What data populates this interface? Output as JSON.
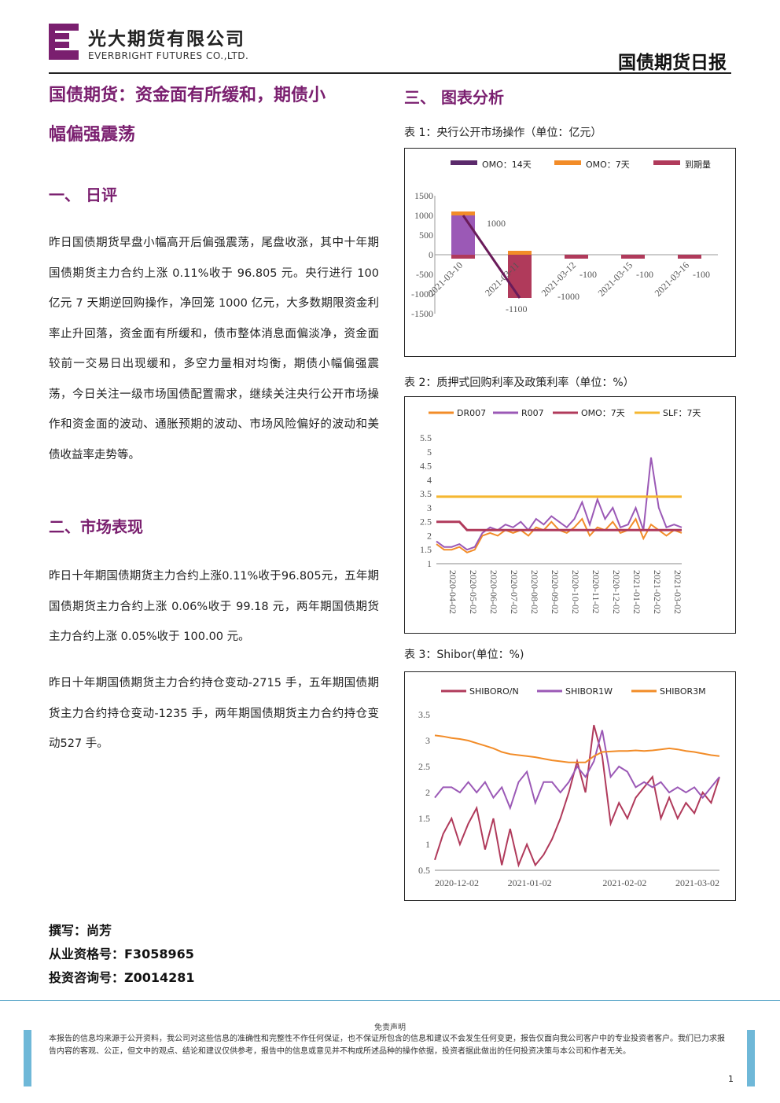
{
  "header": {
    "company_cn": "光大期货有限公司",
    "company_en": "EVERBRIGHT FUTURES CO.,LTD.",
    "doc_title": "国债期货日报"
  },
  "colors": {
    "accent": "#7a1f6f",
    "chart_purple": "#9b59b6",
    "chart_orange": "#f28c28",
    "chart_red": "#b03a5b",
    "chart_gold": "#f5b731"
  },
  "left": {
    "main_title_1": "国债期货：资金面有所缓和，期债小",
    "main_title_2": "幅偏强震荡",
    "sec1_title": "一、  日评",
    "sec1_paragraph": "昨日国债期货早盘小幅高开后偏强震荡，尾盘收涨，其中十年期国债期货主力合约上涨 0.11%收于 96.805 元。央行进行 100 亿元 7 天期逆回购操作，净回笼 1000 亿元，大多数期限资金利率止升回落，资金面有所缓和，债市整体消息面偏淡净，资金面较前一交易日出现缓和，多空力量相对均衡，期债小幅偏强震荡，今日关注一级市场国债配置需求，继续关注央行公开市场操作和资金面的波动、通胀预期的波动、市场风险偏好的波动和美债收益率走势等。",
    "sec2_title": "二、市场表现",
    "sec2_para1": "昨日十年期国债期货主力合约上涨0.11%收于96.805元，五年期国债期货主力合约上涨 0.06%收于 99.18 元，两年期国债期货主力合约上涨 0.05%收于 100.00 元。",
    "sec2_para2": "昨日十年期国债期货主力合约持仓变动-2715 手，五年期国债期货主力合约持仓变动-1235 手，两年期国债期货主力合约持仓变动527 手。"
  },
  "right": {
    "sec3_title": "三、  图表分析",
    "cap1": "表 1：央行公开市场操作（单位：亿元）",
    "cap2": "表 2：质押式回购利率及政策利率（单位：%）",
    "cap3": "表 3：Shibor(单位：%)"
  },
  "chart_data": [
    {
      "type": "bar",
      "legend": [
        "OMO：14天",
        "OMO：7天",
        "到期量"
      ],
      "categories": [
        "2021-03-10",
        "2021-03-11",
        "2021-03-12",
        "2021-03-15",
        "2021-03-16"
      ],
      "series": [
        {
          "name": "OMO：14天",
          "values": [
            1000,
            0,
            0,
            0,
            0
          ]
        },
        {
          "name": "OMO：7天",
          "values": [
            100,
            100,
            0,
            0,
            0
          ]
        },
        {
          "name": "到期量",
          "values": [
            -100,
            -1100,
            -100,
            -100,
            -100
          ]
        }
      ],
      "line_note": "OMO：14天 line from 1000 to -1100",
      "data_labels": [
        "1000",
        "-1100",
        "-100",
        "-100",
        "-100",
        "-1000"
      ],
      "yticks": [
        "1500",
        "1000",
        "500",
        "0",
        "-500",
        "-1000",
        "-1500"
      ],
      "ylim": [
        -1500,
        1500
      ]
    },
    {
      "type": "line",
      "legend": [
        "DR007",
        "R007",
        "OMO：7天",
        "SLF：7天"
      ],
      "xticks": [
        "2020-04-02",
        "2020-05-02",
        "2020-06-02",
        "2020-07-02",
        "2020-08-02",
        "2020-09-02",
        "2020-10-02",
        "2020-11-02",
        "2020-12-02",
        "2021-01-02",
        "2021-02-02",
        "2021-03-02"
      ],
      "yticks": [
        "5.5",
        "5",
        "4.5",
        "4",
        "3.5",
        "3",
        "2.5",
        "2",
        "1.5",
        "1"
      ],
      "ylim": [
        1,
        5.5
      ],
      "series": [
        {
          "name": "DR007",
          "values": [
            1.7,
            1.5,
            1.5,
            1.6,
            1.4,
            1.5,
            2.0,
            2.1,
            2.0,
            2.2,
            2.1,
            2.2,
            2.0,
            2.3,
            2.2,
            2.5,
            2.2,
            2.1,
            2.3,
            2.6,
            2.0,
            2.3,
            2.2,
            2.5,
            2.1,
            2.2,
            2.6,
            1.9,
            2.4,
            2.2,
            2.0,
            2.2,
            2.1
          ]
        },
        {
          "name": "R007",
          "values": [
            1.8,
            1.6,
            1.6,
            1.7,
            1.5,
            1.6,
            2.1,
            2.3,
            2.2,
            2.4,
            2.3,
            2.5,
            2.2,
            2.6,
            2.4,
            2.7,
            2.5,
            2.3,
            2.6,
            3.2,
            2.4,
            3.3,
            2.6,
            3.0,
            2.3,
            2.4,
            3.0,
            2.2,
            4.8,
            3.0,
            2.3,
            2.4,
            2.3
          ]
        },
        {
          "name": "OMO：7天",
          "values": [
            2.5,
            2.5,
            2.5,
            2.5,
            2.2,
            2.2,
            2.2,
            2.2,
            2.2,
            2.2,
            2.2,
            2.2,
            2.2,
            2.2,
            2.2,
            2.2,
            2.2,
            2.2,
            2.2,
            2.2,
            2.2,
            2.2,
            2.2,
            2.2,
            2.2,
            2.2,
            2.2,
            2.2,
            2.2,
            2.2,
            2.2,
            2.2,
            2.2
          ]
        },
        {
          "name": "SLF：7天",
          "values": [
            3.4,
            3.4,
            3.4,
            3.4,
            3.4,
            3.4,
            3.4,
            3.4,
            3.4,
            3.4,
            3.4,
            3.4,
            3.4,
            3.4,
            3.4,
            3.4,
            3.4,
            3.4,
            3.4,
            3.4,
            3.4,
            3.4,
            3.4,
            3.4,
            3.4,
            3.4,
            3.4,
            3.4,
            3.4,
            3.4,
            3.4,
            3.4,
            3.4
          ]
        }
      ]
    },
    {
      "type": "line",
      "legend": [
        "SHIBORO/N",
        "SHIBOR1W",
        "SHIBOR3M"
      ],
      "xticks": [
        "2020-12-02",
        "2021-01-02",
        "2021-02-02",
        "2021-03-02"
      ],
      "yticks": [
        "3.5",
        "3",
        "2.5",
        "2",
        "1.5",
        "1",
        "0.5"
      ],
      "ylim": [
        0.5,
        3.5
      ],
      "series": [
        {
          "name": "SHIBORO/N",
          "values": [
            0.7,
            1.2,
            1.5,
            1.0,
            1.4,
            1.7,
            0.9,
            1.5,
            0.6,
            1.3,
            0.6,
            1.0,
            0.6,
            0.8,
            1.1,
            1.5,
            2.0,
            2.6,
            2.0,
            3.3,
            2.7,
            1.4,
            1.8,
            1.5,
            1.9,
            2.1,
            2.3,
            1.5,
            1.9,
            1.5,
            1.8,
            1.6,
            2.0,
            1.8,
            2.3
          ]
        },
        {
          "name": "SHIBOR1W",
          "values": [
            1.9,
            2.1,
            2.1,
            2.0,
            2.2,
            2.0,
            2.2,
            1.9,
            2.1,
            1.7,
            2.2,
            2.4,
            1.8,
            2.2,
            2.2,
            2.0,
            2.2,
            2.5,
            2.3,
            2.6,
            3.2,
            2.3,
            2.5,
            2.4,
            2.1,
            2.2,
            2.1,
            2.2,
            2.0,
            2.1,
            2.0,
            2.1,
            1.9,
            2.1,
            2.3
          ]
        },
        {
          "name": "SHIBOR3M",
          "values": [
            3.1,
            3.08,
            3.05,
            3.03,
            3.0,
            2.95,
            2.9,
            2.85,
            2.78,
            2.74,
            2.72,
            2.7,
            2.68,
            2.65,
            2.62,
            2.6,
            2.58,
            2.58,
            2.58,
            2.7,
            2.78,
            2.79,
            2.8,
            2.8,
            2.81,
            2.8,
            2.81,
            2.83,
            2.85,
            2.83,
            2.8,
            2.78,
            2.75,
            2.72,
            2.7
          ]
        }
      ]
    }
  ],
  "signature": {
    "author": "撰写：尚芳",
    "license": "从业资格号：F3058965",
    "advisory": "投资咨询号：Z0014281"
  },
  "footer": {
    "disclaimer_title": "免责声明",
    "disclaimer": "本报告的信息均来源于公开资料，我公司对这些信息的准确性和完整性不作任何保证，也不保证所包含的信息和建议不会发生任何变更，报告仅面向我公司客户中的专业投资者客户。我们已力求报告内容的客观、公正，但文中的观点、结论和建议仅供参考，报告中的信息或意见并不构成所述品种的操作依据，投资者据此做出的任何投资决策与本公司和作者无关。",
    "page": "1"
  }
}
